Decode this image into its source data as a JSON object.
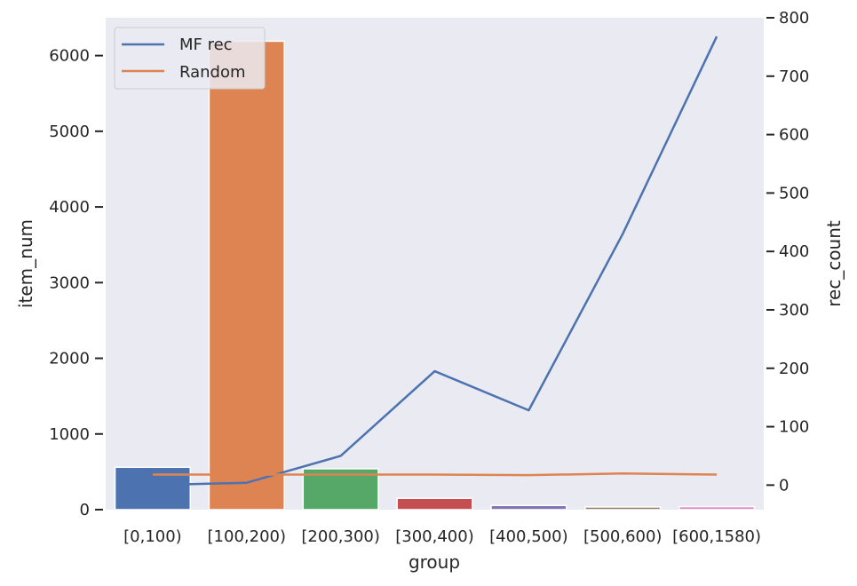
{
  "chart_data": {
    "type": "bar+line",
    "xlabel": "group",
    "ylabel_left": "item_num",
    "ylabel_right": "rec_count",
    "categories": [
      "[0,100)",
      "[100,200)",
      "[200,300)",
      "[300,400)",
      "[400,500)",
      "[500,600)",
      "[600,1580)"
    ],
    "bars": {
      "values": [
        560,
        6190,
        540,
        150,
        55,
        35,
        40
      ],
      "colors": [
        "#4c72b0",
        "#dd8452",
        "#55a868",
        "#c44e52",
        "#8172b3",
        "#937860",
        "#da8bc3"
      ]
    },
    "series": [
      {
        "name": "MF rec",
        "color": "#4c72b0",
        "axis": "right",
        "values": [
          0,
          4,
          50,
          195,
          128,
          430,
          768
        ]
      },
      {
        "name": "Random",
        "color": "#dd8452",
        "axis": "right",
        "values": [
          18,
          18,
          18,
          18,
          17,
          20,
          18
        ]
      }
    ],
    "ylim_left": [
      0,
      6500
    ],
    "yticks_left": [
      0,
      1000,
      2000,
      3000,
      4000,
      5000,
      6000
    ],
    "ylim_right": [
      -42,
      800
    ],
    "yticks_right": [
      0,
      100,
      200,
      300,
      400,
      500,
      600,
      700,
      800
    ],
    "legend": {
      "location": "upper-left"
    },
    "grid": false,
    "background": "#eaeaf2"
  }
}
